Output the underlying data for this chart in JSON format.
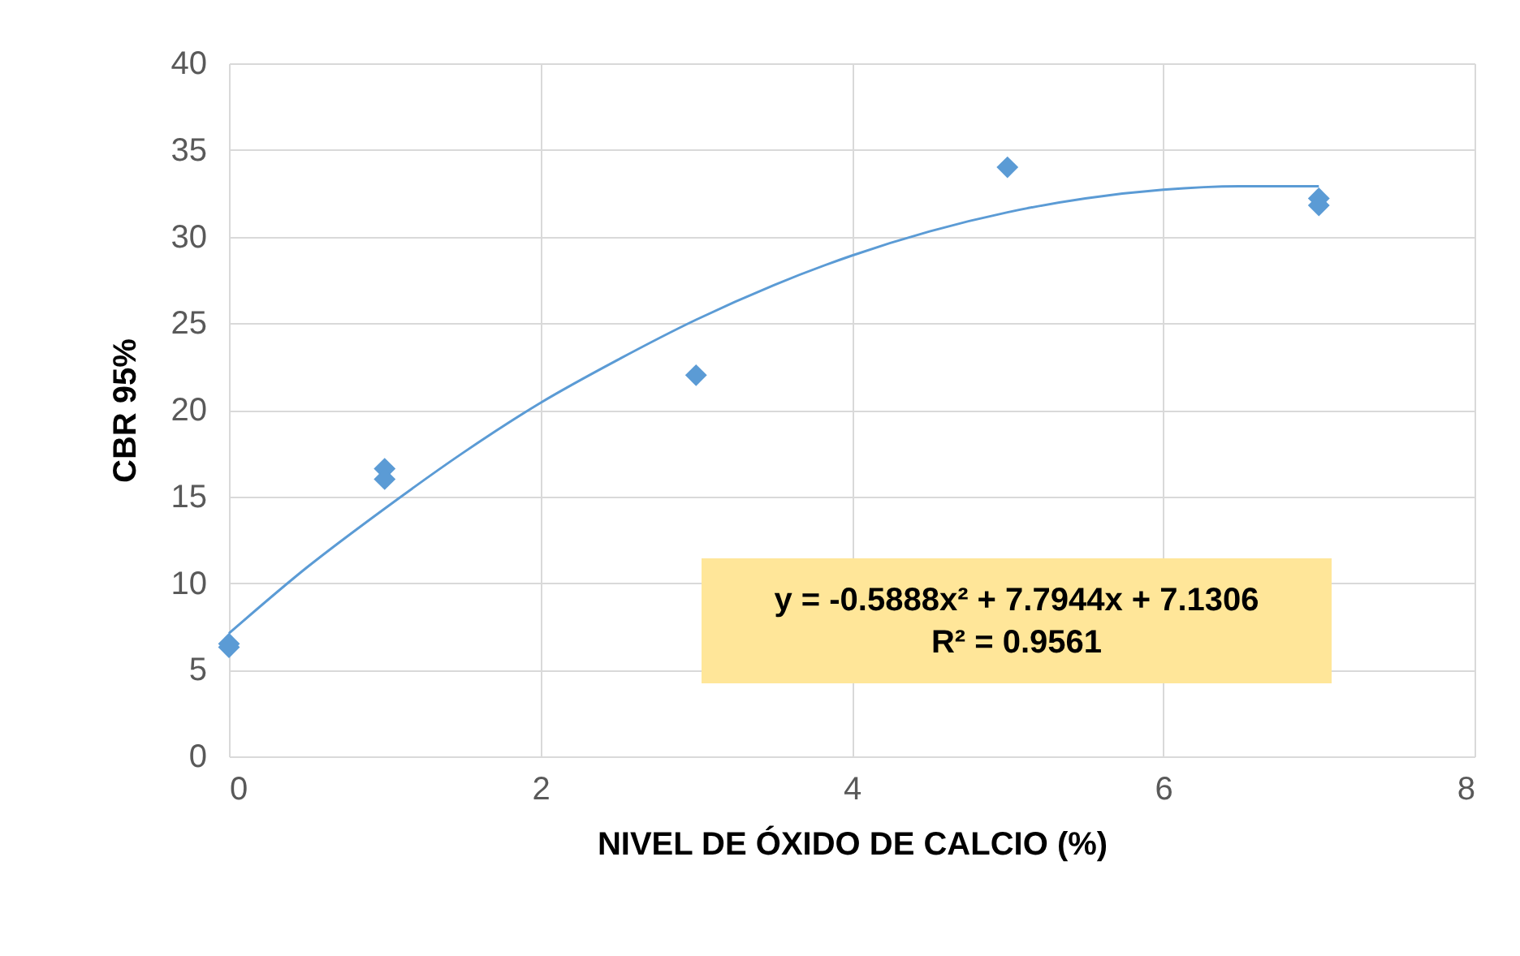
{
  "chart_data": {
    "type": "scatter",
    "xlabel": "NIVEL DE ÓXIDO DE CALCIO (%)",
    "ylabel": "CBR 95%",
    "xlim": [
      0,
      8
    ],
    "xticks": [
      0,
      2,
      4,
      6,
      8
    ],
    "ylim": [
      0,
      40
    ],
    "yticks": [
      0,
      5,
      10,
      15,
      20,
      25,
      30,
      35,
      40
    ],
    "grid": true,
    "marker": "diamond",
    "series": [
      {
        "color": "#5b9bd5",
        "x": [
          0,
          0,
          1,
          1,
          3,
          5,
          7,
          7
        ],
        "values": [
          6.5,
          6.3,
          16.6,
          16.0,
          22.0,
          34.0,
          32.2,
          31.8
        ]
      },
      {
        "type": "line",
        "color": "#5b9bd5",
        "marker": "none",
        "x": [
          0,
          0.5,
          1,
          1.5,
          2,
          2.5,
          3,
          3.5,
          4,
          4.5,
          5,
          5.5,
          6,
          6.5,
          7
        ],
        "values": [
          7.1,
          10.9,
          14.3,
          17.5,
          20.4,
          22.9,
          25.2,
          27.2,
          28.9,
          30.3,
          31.4,
          32.2,
          32.7,
          32.9,
          32.9
        ]
      }
    ],
    "annotations": [
      "y = -0.5888x² + 7.7944x + 7.1306",
      "R² = 0.9561"
    ]
  }
}
